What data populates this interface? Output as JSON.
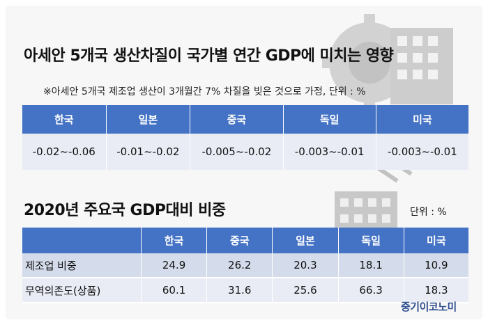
{
  "section1": {
    "title": "아세안 5개국 생산차질이 국가별 연간 GDP에 미치는 영향",
    "note": "※아세안 5개국 제조업 생산이 3개월간 7% 차질을 빚은 것으로 가정, 단위 : %",
    "headers": [
      "한국",
      "일본",
      "중국",
      "독일",
      "미국"
    ],
    "values": [
      "-0.02~-0.06",
      "-0.01~-0.02",
      "-0.005~-0.02",
      "-0.003~-0.01",
      "-0.003~-0.01"
    ]
  },
  "section2": {
    "title": "2020년 주요국 GDP대비 비중",
    "unit": "단위 : %",
    "headers": [
      "한국",
      "중국",
      "일본",
      "독일",
      "미국"
    ],
    "rows": [
      {
        "label": "제조업 비중",
        "values": [
          "24.9",
          "26.2",
          "20.3",
          "18.1",
          "10.9"
        ]
      },
      {
        "label": "무역의존도(상품)",
        "values": [
          "60.1",
          "31.6",
          "25.6",
          "66.3",
          "18.3"
        ]
      }
    ]
  },
  "brand": "중기이코노미",
  "colors": {
    "header": "#4472c4",
    "row_light": "#e9ecf5",
    "row_dark": "#d4dbea",
    "brand": "#2e4e8f"
  }
}
